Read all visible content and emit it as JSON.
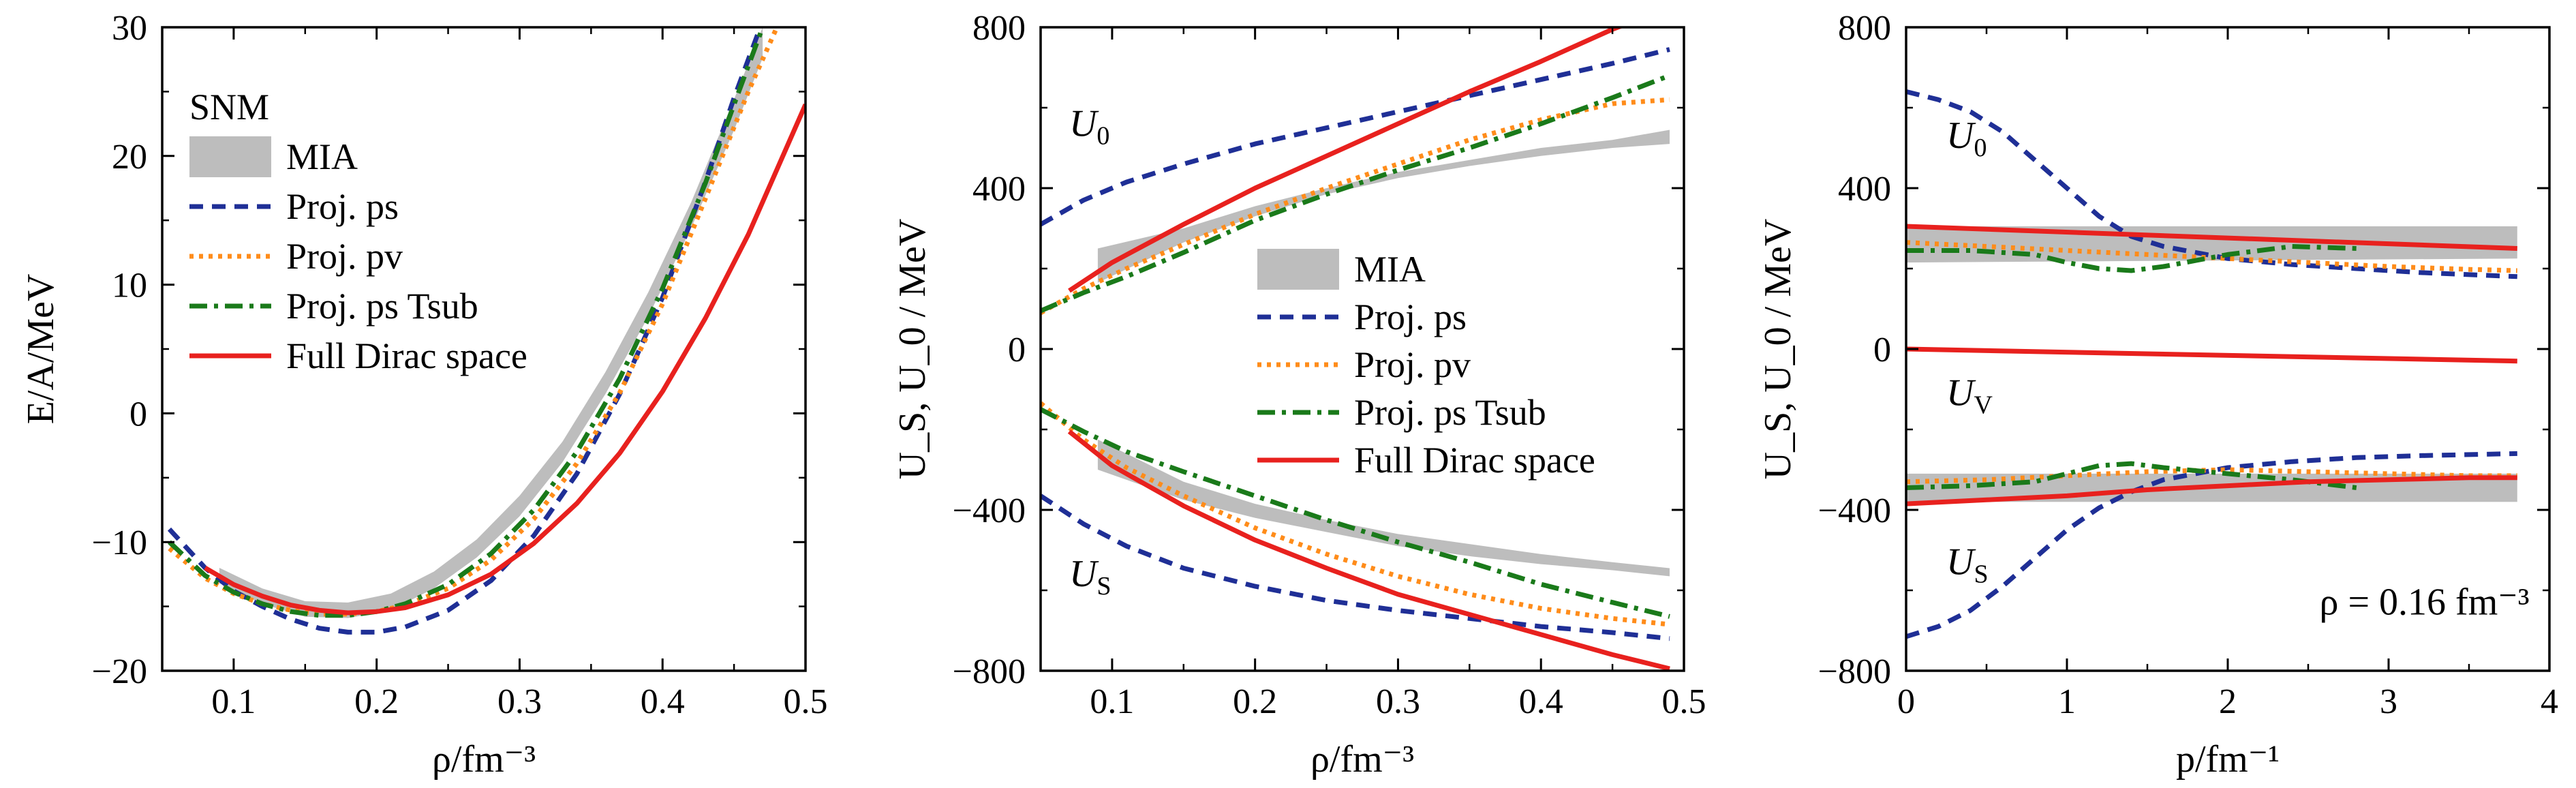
{
  "colors": {
    "MIA": "#bdbdbd",
    "Proj. ps": "#1f2f96",
    "Proj. pv": "#ff8c1a",
    "Proj. ps Tsub": "#1a7a1a",
    "Full Dirac space": "#e8211e"
  },
  "chart_data": [
    {
      "type": "line",
      "id": "p1",
      "xlabel": "ρ/fm⁻³",
      "ylabel": "E/A/MeV",
      "xlim": [
        0.05,
        0.5
      ],
      "ylim": [
        -20,
        30
      ],
      "xticks": [
        0.1,
        0.2,
        0.3,
        0.4,
        0.5
      ],
      "xtick_labels": [
        "0.1",
        "0.2",
        "0.3",
        "0.4",
        "0.5"
      ],
      "yticks": [
        -20,
        -10,
        0,
        10,
        20,
        30
      ],
      "ytick_labels": [
        "−20",
        "−10",
        "0",
        "10",
        "20",
        "30"
      ],
      "legend_title": "SNM",
      "legend": [
        "MIA",
        "Proj. ps",
        "Proj. pv",
        "Proj. ps Tsub",
        "Full Dirac space"
      ],
      "legend_loc": "upper-left",
      "annotations": [],
      "series": [
        {
          "name": "MIA",
          "band": true,
          "x": [
            0.09,
            0.12,
            0.15,
            0.18,
            0.21,
            0.24,
            0.27,
            0.3,
            0.33,
            0.36,
            0.39,
            0.42,
            0.45,
            0.47
          ],
          "lower": [
            -13.2,
            -14.8,
            -15.8,
            -15.9,
            -15.3,
            -13.6,
            -11.2,
            -8.0,
            -3.8,
            1.5,
            7.5,
            14.4,
            22.0,
            27.6
          ],
          "upper": [
            -12.0,
            -13.6,
            -14.6,
            -14.7,
            -14.0,
            -12.3,
            -9.8,
            -6.4,
            -2.2,
            3.2,
            9.4,
            16.4,
            24.4,
            30.0
          ]
        },
        {
          "name": "Proj. ps",
          "x": [
            0.055,
            0.08,
            0.1,
            0.12,
            0.14,
            0.16,
            0.18,
            0.2,
            0.22,
            0.25,
            0.28,
            0.31,
            0.34,
            0.37,
            0.4,
            0.43,
            0.45,
            0.47
          ],
          "y": [
            -9.0,
            -12.0,
            -13.8,
            -15.0,
            -16.0,
            -16.7,
            -17.0,
            -17.0,
            -16.6,
            -15.3,
            -13.0,
            -9.5,
            -4.7,
            1.5,
            9.0,
            18.0,
            24.5,
            30.5
          ]
        },
        {
          "name": "Proj. pv",
          "x": [
            0.055,
            0.08,
            0.1,
            0.12,
            0.14,
            0.16,
            0.18,
            0.2,
            0.22,
            0.25,
            0.28,
            0.31,
            0.34,
            0.37,
            0.4,
            0.43,
            0.46,
            0.48
          ],
          "y": [
            -10.5,
            -12.8,
            -14.0,
            -14.8,
            -15.3,
            -15.6,
            -15.6,
            -15.4,
            -14.9,
            -13.6,
            -11.4,
            -8.2,
            -3.9,
            1.6,
            8.5,
            16.7,
            25.0,
            30.0
          ]
        },
        {
          "name": "Proj. ps Tsub",
          "x": [
            0.055,
            0.08,
            0.1,
            0.12,
            0.14,
            0.16,
            0.18,
            0.2,
            0.22,
            0.25,
            0.28,
            0.31,
            0.34,
            0.37,
            0.4,
            0.43,
            0.45,
            0.47
          ],
          "y": [
            -10.0,
            -12.6,
            -13.9,
            -14.8,
            -15.4,
            -15.7,
            -15.7,
            -15.4,
            -14.8,
            -13.3,
            -10.9,
            -7.5,
            -3.0,
            2.7,
            9.7,
            17.9,
            24.0,
            30.0
          ]
        },
        {
          "name": "Full Dirac space",
          "x": [
            0.08,
            0.1,
            0.12,
            0.14,
            0.16,
            0.18,
            0.2,
            0.22,
            0.25,
            0.28,
            0.31,
            0.34,
            0.37,
            0.4,
            0.43,
            0.46,
            0.5
          ],
          "y": [
            -12.0,
            -13.3,
            -14.2,
            -14.9,
            -15.3,
            -15.5,
            -15.4,
            -15.1,
            -14.1,
            -12.5,
            -10.1,
            -7.0,
            -3.1,
            1.7,
            7.4,
            13.9,
            24.0
          ]
        }
      ]
    },
    {
      "type": "line",
      "id": "p2",
      "xlabel": "ρ/fm⁻³",
      "ylabel": "U_S, U_0 / MeV",
      "xlim": [
        0.05,
        0.5
      ],
      "ylim": [
        -800,
        800
      ],
      "xticks": [
        0.1,
        0.2,
        0.3,
        0.4,
        0.5
      ],
      "xtick_labels": [
        "0.1",
        "0.2",
        "0.3",
        "0.4",
        "0.5"
      ],
      "yticks": [
        -800,
        -400,
        0,
        400,
        800
      ],
      "ytick_labels": [
        "−800",
        "−400",
        "0",
        "400",
        "800"
      ],
      "legend_title": "",
      "legend": [
        "MIA",
        "Proj. ps",
        "Proj. pv",
        "Proj. ps Tsub",
        "Full Dirac space"
      ],
      "legend_loc": "center",
      "annotations": [
        {
          "label": "U",
          "sub": "0",
          "x": 0.07,
          "y": 530
        },
        {
          "label": "U",
          "sub": "S",
          "x": 0.07,
          "y": -590
        }
      ],
      "series": [
        {
          "name": "MIA",
          "band": true,
          "x": [
            0.09,
            0.15,
            0.2,
            0.25,
            0.3,
            0.35,
            0.4,
            0.45,
            0.49
          ],
          "lower": [
            165,
            265,
            330,
            385,
            425,
            455,
            480,
            500,
            510
          ],
          "upper": [
            250,
            300,
            355,
            400,
            440,
            470,
            500,
            520,
            545
          ]
        },
        {
          "name": "MIA",
          "band": true,
          "x": [
            0.09,
            0.15,
            0.2,
            0.25,
            0.3,
            0.35,
            0.4,
            0.45,
            0.49
          ],
          "lower": [
            -300,
            -375,
            -420,
            -455,
            -490,
            -515,
            -535,
            -550,
            -565
          ],
          "upper": [
            -225,
            -330,
            -385,
            -425,
            -460,
            -485,
            -510,
            -530,
            -545
          ]
        },
        {
          "name": "Proj. ps",
          "x": [
            0.05,
            0.08,
            0.11,
            0.15,
            0.2,
            0.25,
            0.3,
            0.35,
            0.4,
            0.45,
            0.49
          ],
          "y": [
            310,
            370,
            415,
            460,
            510,
            550,
            590,
            630,
            670,
            710,
            745
          ]
        },
        {
          "name": "Proj. pv",
          "x": [
            0.05,
            0.08,
            0.11,
            0.15,
            0.2,
            0.25,
            0.3,
            0.35,
            0.4,
            0.45,
            0.49
          ],
          "y": [
            90,
            150,
            200,
            260,
            335,
            400,
            460,
            520,
            570,
            610,
            620
          ]
        },
        {
          "name": "Proj. ps Tsub",
          "x": [
            0.05,
            0.08,
            0.11,
            0.15,
            0.2,
            0.25,
            0.3,
            0.35,
            0.4,
            0.45,
            0.49
          ],
          "y": [
            95,
            140,
            180,
            240,
            320,
            385,
            445,
            500,
            560,
            625,
            680
          ]
        },
        {
          "name": "Full Dirac space",
          "x": [
            0.07,
            0.1,
            0.15,
            0.2,
            0.25,
            0.3,
            0.35,
            0.4,
            0.45,
            0.48
          ],
          "y": [
            145,
            215,
            310,
            400,
            480,
            560,
            640,
            715,
            795,
            835
          ]
        },
        {
          "name": "Proj. ps",
          "x": [
            0.05,
            0.08,
            0.11,
            0.15,
            0.2,
            0.25,
            0.3,
            0.35,
            0.4,
            0.45,
            0.49
          ],
          "y": [
            -365,
            -435,
            -490,
            -545,
            -590,
            -625,
            -650,
            -670,
            -690,
            -705,
            -720
          ]
        },
        {
          "name": "Proj. pv",
          "x": [
            0.05,
            0.08,
            0.11,
            0.15,
            0.2,
            0.25,
            0.3,
            0.35,
            0.4,
            0.45,
            0.49
          ],
          "y": [
            -135,
            -225,
            -295,
            -365,
            -445,
            -510,
            -565,
            -610,
            -645,
            -670,
            -685
          ]
        },
        {
          "name": "Proj. ps Tsub",
          "x": [
            0.05,
            0.08,
            0.11,
            0.15,
            0.2,
            0.25,
            0.3,
            0.35,
            0.4,
            0.45,
            0.49
          ],
          "y": [
            -150,
            -205,
            -255,
            -305,
            -365,
            -425,
            -480,
            -530,
            -585,
            -630,
            -665
          ]
        },
        {
          "name": "Full Dirac space",
          "x": [
            0.07,
            0.1,
            0.15,
            0.2,
            0.25,
            0.3,
            0.35,
            0.4,
            0.45,
            0.49
          ],
          "y": [
            -205,
            -290,
            -390,
            -475,
            -545,
            -610,
            -660,
            -710,
            -760,
            -795
          ]
        }
      ]
    },
    {
      "type": "line",
      "id": "p3",
      "xlabel": "p/fm⁻¹",
      "ylabel": "U_S, U_0 / MeV",
      "xlim": [
        0,
        4
      ],
      "ylim": [
        -800,
        800
      ],
      "xticks": [
        0,
        1,
        2,
        3,
        4
      ],
      "xtick_labels": [
        "0",
        "1",
        "2",
        "3",
        "4"
      ],
      "yticks": [
        -800,
        -400,
        0,
        400,
        800
      ],
      "ytick_labels": [
        "−800",
        "−400",
        "0",
        "400",
        "800"
      ],
      "legend_title": "",
      "legend": [],
      "legend_loc": "",
      "annotations": [
        {
          "label": "U",
          "sub": "0",
          "x": 0.25,
          "y": 500
        },
        {
          "label": "U",
          "sub": "V",
          "x": 0.25,
          "y": -140
        },
        {
          "label": "U",
          "sub": "S",
          "x": 0.25,
          "y": -560
        },
        {
          "label": "ρ = 0.16 fm⁻³",
          "x": 2.57,
          "y": -660
        }
      ],
      "series": [
        {
          "name": "MIA",
          "band": true,
          "x": [
            0,
            3.8
          ],
          "lower": [
            215,
            225
          ],
          "upper": [
            305,
            305
          ]
        },
        {
          "name": "MIA",
          "band": true,
          "x": [
            0,
            3.8
          ],
          "lower": [
            -380,
            -380
          ],
          "upper": [
            -310,
            -310
          ]
        },
        {
          "name": "Proj. ps",
          "x": [
            0,
            0.2,
            0.4,
            0.6,
            0.8,
            1.0,
            1.2,
            1.4,
            1.6,
            1.8,
            2.0,
            2.4,
            2.8,
            3.2,
            3.8
          ],
          "y": [
            640,
            620,
            590,
            540,
            470,
            400,
            330,
            280,
            255,
            240,
            225,
            210,
            200,
            190,
            180
          ]
        },
        {
          "name": "Proj. pv",
          "x": [
            0,
            0.5,
            1.0,
            1.5,
            2.0,
            2.5,
            3.0,
            3.5,
            3.8
          ],
          "y": [
            265,
            255,
            245,
            235,
            225,
            215,
            205,
            198,
            195
          ]
        },
        {
          "name": "Proj. ps Tsub",
          "x": [
            0,
            0.4,
            0.8,
            1.0,
            1.2,
            1.4,
            1.6,
            1.8,
            2.0,
            2.4,
            2.8
          ],
          "y": [
            245,
            245,
            235,
            215,
            200,
            195,
            205,
            220,
            235,
            255,
            250
          ]
        },
        {
          "name": "Full Dirac space",
          "x": [
            0,
            3.8
          ],
          "y": [
            305,
            250
          ]
        },
        {
          "name": "Full Dirac space",
          "x": [
            0,
            3.8
          ],
          "y": [
            0,
            -30
          ]
        },
        {
          "name": "Proj. ps",
          "x": [
            0,
            0.2,
            0.4,
            0.6,
            0.8,
            1.0,
            1.2,
            1.4,
            1.6,
            1.8,
            2.0,
            2.4,
            2.8,
            3.2,
            3.8
          ],
          "y": [
            -715,
            -690,
            -650,
            -590,
            -520,
            -450,
            -395,
            -355,
            -325,
            -310,
            -295,
            -280,
            -270,
            -265,
            -260
          ]
        },
        {
          "name": "Proj. pv",
          "x": [
            0,
            0.5,
            1.0,
            1.5,
            2.0,
            2.5,
            3.0,
            3.5,
            3.8
          ],
          "y": [
            -330,
            -325,
            -315,
            -305,
            -300,
            -305,
            -310,
            -315,
            -315
          ]
        },
        {
          "name": "Proj. ps Tsub",
          "x": [
            0,
            0.4,
            0.8,
            1.0,
            1.2,
            1.4,
            1.6,
            2.0,
            2.4,
            2.8
          ],
          "y": [
            -345,
            -340,
            -330,
            -310,
            -290,
            -285,
            -295,
            -310,
            -325,
            -345
          ]
        },
        {
          "name": "Full Dirac space",
          "x": [
            0,
            0.5,
            1.0,
            1.5,
            2.0,
            2.5,
            3.0,
            3.5,
            3.8
          ],
          "y": [
            -385,
            -375,
            -365,
            -350,
            -340,
            -330,
            -325,
            -320,
            -320
          ]
        }
      ]
    }
  ]
}
